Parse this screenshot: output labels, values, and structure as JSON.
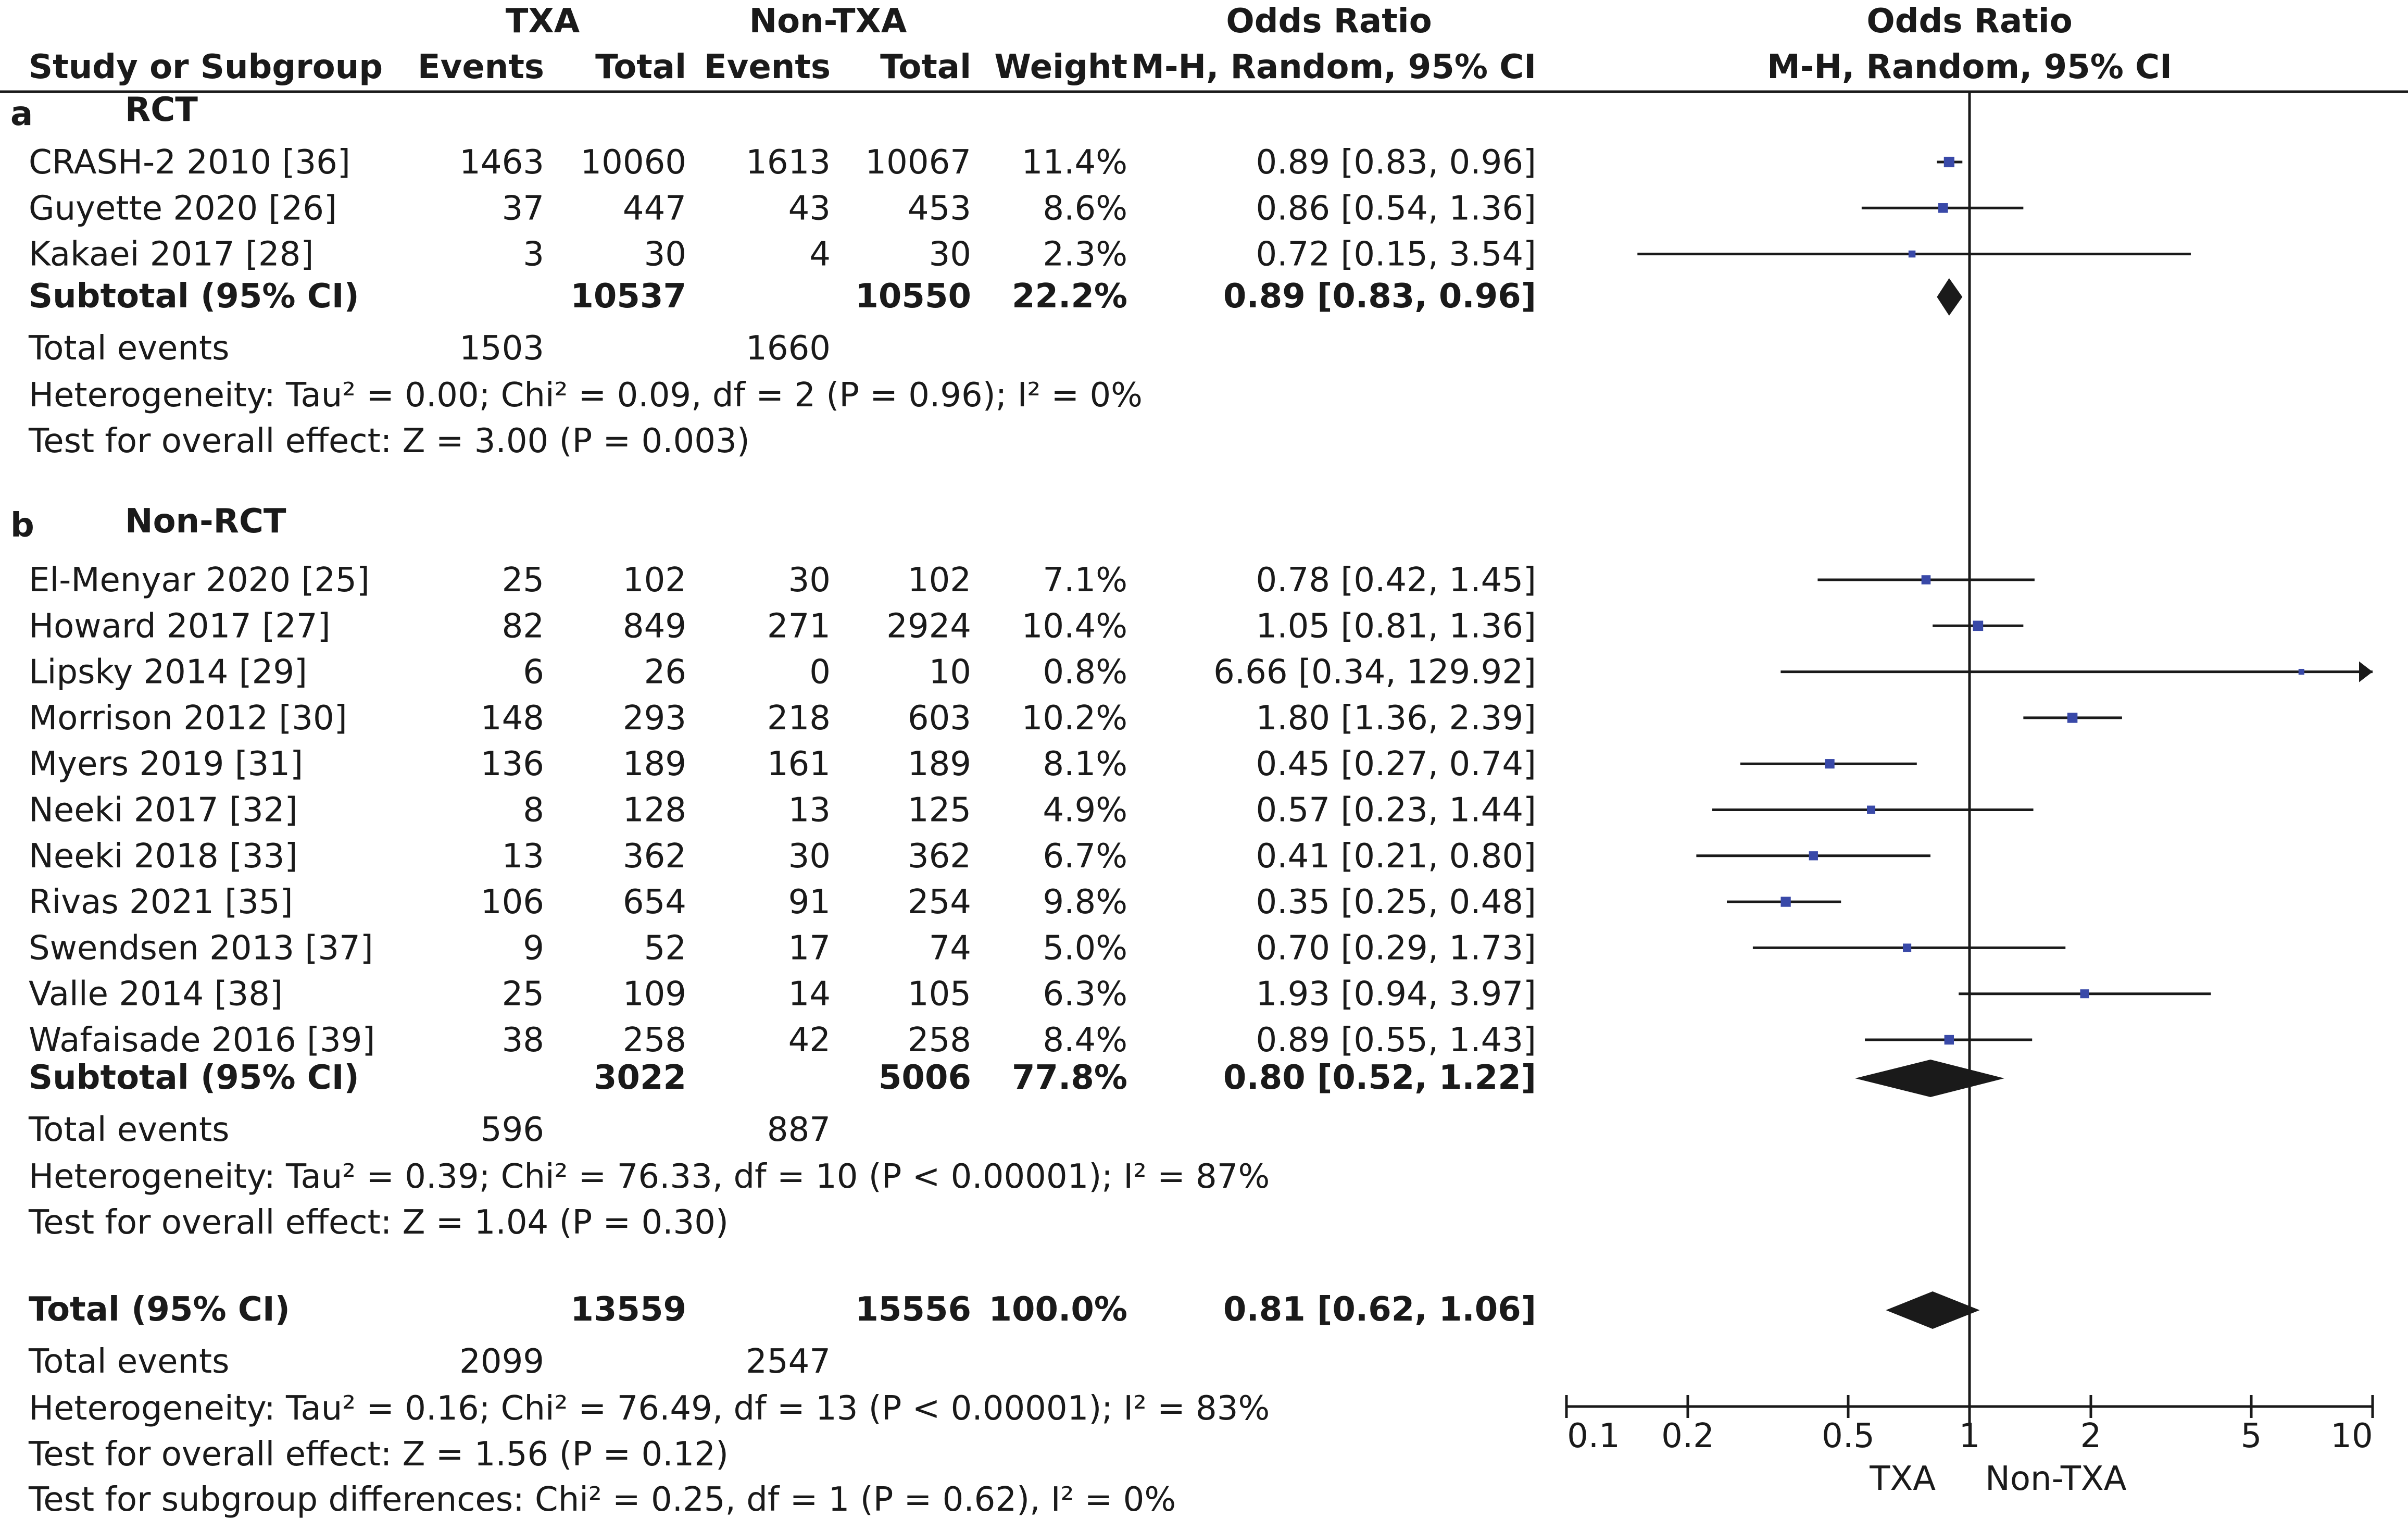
{
  "header": {
    "group_txa": "TXA",
    "group_nontxa": "Non-TXA",
    "or_title_left": "Odds Ratio",
    "or_title_right": "Odds Ratio",
    "study_col": "Study or Subgroup",
    "events_1": "Events",
    "total_1": "Total",
    "events_2": "Events",
    "total_2": "Total",
    "weight": "Weight",
    "method_left": "M-H, Random, 95% CI",
    "method_right": "M-H, Random, 95% CI"
  },
  "subgroups": [
    {
      "letter": "a",
      "name": "RCT",
      "studies": [
        {
          "study": "CRASH-2 2010 [36]",
          "e1": "1463",
          "t1": "10060",
          "e2": "1613",
          "t2": "10067",
          "weight": "11.4%",
          "ci_text": "0.89 [0.83, 0.96]",
          "or": 0.89,
          "lo": 0.83,
          "hi": 0.96
        },
        {
          "study": "Guyette 2020 [26]",
          "e1": "37",
          "t1": "447",
          "e2": "43",
          "t2": "453",
          "weight": "8.6%",
          "ci_text": "0.86 [0.54, 1.36]",
          "or": 0.86,
          "lo": 0.54,
          "hi": 1.36
        },
        {
          "study": "Kakaei 2017 [28]",
          "e1": "3",
          "t1": "30",
          "e2": "4",
          "t2": "30",
          "weight": "2.3%",
          "ci_text": "0.72 [0.15, 3.54]",
          "or": 0.72,
          "lo": 0.15,
          "hi": 3.54
        }
      ],
      "subtotal": {
        "label": "Subtotal (95% CI)",
        "t1": "10537",
        "t2": "10550",
        "weight": "22.2%",
        "ci_text": "0.89 [0.83, 0.96]",
        "or": 0.89,
        "lo": 0.83,
        "hi": 0.96
      },
      "events": {
        "label": "Total events",
        "e1": "1503",
        "e2": "1660"
      },
      "heterogeneity": "Heterogeneity: Tau² = 0.00; Chi² = 0.09, df = 2 (P = 0.96); I² = 0%",
      "overall": "Test for overall effect: Z = 3.00 (P = 0.003)"
    },
    {
      "letter": "b",
      "name": "Non-RCT",
      "studies": [
        {
          "study": "El-Menyar 2020 [25]",
          "e1": "25",
          "t1": "102",
          "e2": "30",
          "t2": "102",
          "weight": "7.1%",
          "ci_text": "0.78 [0.42, 1.45]",
          "or": 0.78,
          "lo": 0.42,
          "hi": 1.45
        },
        {
          "study": "Howard 2017 [27]",
          "e1": "82",
          "t1": "849",
          "e2": "271",
          "t2": "2924",
          "weight": "10.4%",
          "ci_text": "1.05 [0.81, 1.36]",
          "or": 1.05,
          "lo": 0.81,
          "hi": 1.36
        },
        {
          "study": "Lipsky 2014 [29]",
          "e1": "6",
          "t1": "26",
          "e2": "0",
          "t2": "10",
          "weight": "0.8%",
          "ci_text": "6.66 [0.34, 129.92]",
          "or": 6.66,
          "lo": 0.34,
          "hi": 129.92
        },
        {
          "study": "Morrison 2012 [30]",
          "e1": "148",
          "t1": "293",
          "e2": "218",
          "t2": "603",
          "weight": "10.2%",
          "ci_text": "1.80 [1.36, 2.39]",
          "or": 1.8,
          "lo": 1.36,
          "hi": 2.39
        },
        {
          "study": "Myers 2019 [31]",
          "e1": "136",
          "t1": "189",
          "e2": "161",
          "t2": "189",
          "weight": "8.1%",
          "ci_text": "0.45 [0.27, 0.74]",
          "or": 0.45,
          "lo": 0.27,
          "hi": 0.74
        },
        {
          "study": "Neeki 2017 [32]",
          "e1": "8",
          "t1": "128",
          "e2": "13",
          "t2": "125",
          "weight": "4.9%",
          "ci_text": "0.57 [0.23, 1.44]",
          "or": 0.57,
          "lo": 0.23,
          "hi": 1.44
        },
        {
          "study": "Neeki 2018 [33]",
          "e1": "13",
          "t1": "362",
          "e2": "30",
          "t2": "362",
          "weight": "6.7%",
          "ci_text": "0.41 [0.21, 0.80]",
          "or": 0.41,
          "lo": 0.21,
          "hi": 0.8
        },
        {
          "study": "Rivas 2021 [35]",
          "e1": "106",
          "t1": "654",
          "e2": "91",
          "t2": "254",
          "weight": "9.8%",
          "ci_text": "0.35 [0.25, 0.48]",
          "or": 0.35,
          "lo": 0.25,
          "hi": 0.48
        },
        {
          "study": "Swendsen 2013 [37]",
          "e1": "9",
          "t1": "52",
          "e2": "17",
          "t2": "74",
          "weight": "5.0%",
          "ci_text": "0.70 [0.29, 1.73]",
          "or": 0.7,
          "lo": 0.29,
          "hi": 1.73
        },
        {
          "study": "Valle 2014 [38]",
          "e1": "25",
          "t1": "109",
          "e2": "14",
          "t2": "105",
          "weight": "6.3%",
          "ci_text": "1.93 [0.94, 3.97]",
          "or": 1.93,
          "lo": 0.94,
          "hi": 3.97
        },
        {
          "study": "Wafaisade 2016 [39]",
          "e1": "38",
          "t1": "258",
          "e2": "42",
          "t2": "258",
          "weight": "8.4%",
          "ci_text": "0.89 [0.55, 1.43]",
          "or": 0.89,
          "lo": 0.55,
          "hi": 1.43
        }
      ],
      "subtotal": {
        "label": "Subtotal (95% CI)",
        "t1": "3022",
        "t2": "5006",
        "weight": "77.8%",
        "ci_text": "0.80 [0.52, 1.22]",
        "or": 0.8,
        "lo": 0.52,
        "hi": 1.22
      },
      "events": {
        "label": "Total events",
        "e1": "596",
        "e2": "887"
      },
      "heterogeneity": "Heterogeneity: Tau² = 0.39; Chi² = 76.33, df = 10 (P < 0.00001); I² = 87%",
      "overall": "Test for overall effect: Z = 1.04 (P = 0.30)"
    }
  ],
  "total": {
    "label": "Total (95% CI)",
    "t1": "13559",
    "t2": "15556",
    "weight": "100.0%",
    "ci_text": "0.81 [0.62, 1.06]",
    "or": 0.81,
    "lo": 0.62,
    "hi": 1.06,
    "events_label": "Total events",
    "e1": "2099",
    "e2": "2547",
    "heterogeneity": "Heterogeneity: Tau² = 0.16; Chi² = 76.49, df = 13 (P < 0.00001); I² = 83%",
    "overall": "Test for overall effect: Z = 1.56 (P = 0.12)",
    "subgroup_diff": "Test for subgroup differences: Chi² = 0.25, df = 1 (P = 0.62), I² = 0%"
  },
  "axis": {
    "ticks": [
      0.1,
      0.2,
      0.5,
      1,
      2,
      5,
      10
    ],
    "tick_labels": [
      "0.1",
      "0.2",
      "0.5",
      "1",
      "2",
      "5",
      "10"
    ],
    "favours_left": "TXA",
    "favours_right": "Non-TXA",
    "scale": "log"
  },
  "colors": {
    "square": "#3949a8",
    "line": "#1a1a1a",
    "diamond": "#1a1a1a",
    "text": "#1a1a1a"
  },
  "chart_data": {
    "type": "forest",
    "title": "",
    "xlabel": "Odds Ratio M-H, Random, 95% CI",
    "x_scale": "log",
    "xlim": [
      0.1,
      10
    ],
    "reference_line": 1,
    "series": [
      {
        "name": "RCT",
        "studies": [
          "CRASH-2 2010 [36]",
          "Guyette 2020 [26]",
          "Kakaei 2017 [28]"
        ],
        "or": [
          0.89,
          0.86,
          0.72
        ],
        "lower": [
          0.83,
          0.54,
          0.15
        ],
        "upper": [
          0.96,
          1.36,
          3.54
        ],
        "weight": [
          11.4,
          8.6,
          2.3
        ],
        "pooled": [
          0.89,
          0.83,
          0.96
        ]
      },
      {
        "name": "Non-RCT",
        "studies": [
          "El-Menyar 2020 [25]",
          "Howard 2017 [27]",
          "Lipsky 2014 [29]",
          "Morrison 2012 [30]",
          "Myers 2019 [31]",
          "Neeki 2017 [32]",
          "Neeki 2018 [33]",
          "Rivas 2021 [35]",
          "Swendsen 2013 [37]",
          "Valle 2014 [38]",
          "Wafaisade 2016 [39]"
        ],
        "or": [
          0.78,
          1.05,
          6.66,
          1.8,
          0.45,
          0.57,
          0.41,
          0.35,
          0.7,
          1.93,
          0.89
        ],
        "lower": [
          0.42,
          0.81,
          0.34,
          1.36,
          0.27,
          0.23,
          0.21,
          0.25,
          0.29,
          0.94,
          0.55
        ],
        "upper": [
          1.45,
          1.36,
          129.92,
          2.39,
          0.74,
          1.44,
          0.8,
          0.48,
          1.73,
          3.97,
          1.43
        ],
        "weight": [
          7.1,
          10.4,
          0.8,
          10.2,
          8.1,
          4.9,
          6.7,
          9.8,
          5.0,
          6.3,
          8.4
        ],
        "pooled": [
          0.8,
          0.52,
          1.22
        ]
      }
    ],
    "overall": {
      "or": 0.81,
      "lower": 0.62,
      "upper": 1.06
    }
  }
}
